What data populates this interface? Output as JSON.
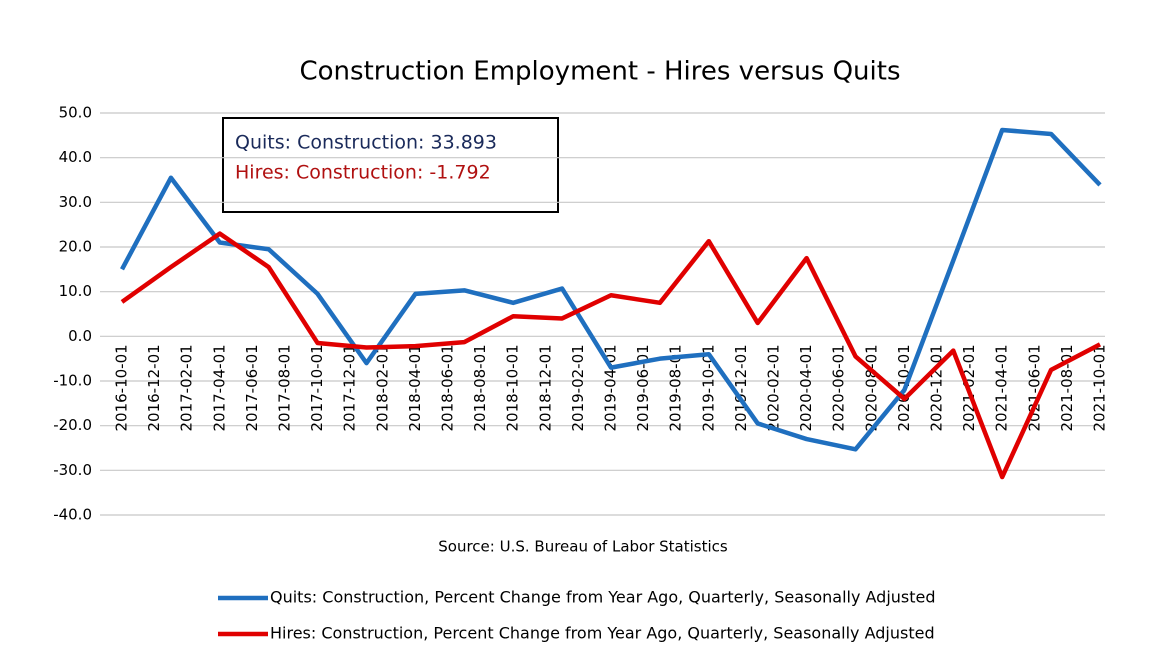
{
  "chart_data": {
    "type": "line",
    "title": "Construction Employment - Hires versus Quits",
    "source": "Source: U.S. Bureau of Labor Statistics",
    "annotations": [
      "Quits: Construction:  33.893",
      "Hires: Construction:  -1.792"
    ],
    "x": [
      "2016-10-01",
      "2017-01-01",
      "2017-04-01",
      "2017-07-01",
      "2017-10-01",
      "2018-01-01",
      "2018-04-01",
      "2018-07-01",
      "2018-10-01",
      "2019-01-01",
      "2019-04-01",
      "2019-07-01",
      "2019-10-01",
      "2020-01-01",
      "2020-04-01",
      "2020-07-01",
      "2020-10-01",
      "2021-01-01",
      "2021-04-01",
      "2021-07-01",
      "2021-10-01"
    ],
    "xticks": [
      "2016-10-01",
      "2016-12-01",
      "2017-02-01",
      "2017-04-01",
      "2017-06-01",
      "2017-08-01",
      "2017-10-01",
      "2017-12-01",
      "2018-02-01",
      "2018-04-01",
      "2018-06-01",
      "2018-08-01",
      "2018-10-01",
      "2018-12-01",
      "2019-02-01",
      "2019-04-01",
      "2019-06-01",
      "2019-08-01",
      "2019-10-01",
      "2019-12-01",
      "2020-02-01",
      "2020-04-01",
      "2020-06-01",
      "2020-08-01",
      "2020-10-01",
      "2020-12-01",
      "2021-02-01",
      "2021-04-01",
      "2021-06-01",
      "2021-08-01",
      "2021-10-01"
    ],
    "series": [
      {
        "name": "Quits: Construction, Percent Change from Year Ago, Quarterly, Seasonally Adjusted",
        "color": "#1f6fbf",
        "values": [
          15,
          35.5,
          21,
          19.5,
          9.5,
          -6,
          9.5,
          10.3,
          7.5,
          10.7,
          -7,
          -5,
          -4,
          -19.5,
          -23,
          -25.3,
          -12,
          17,
          46.2,
          45.3,
          33.893
        ]
      },
      {
        "name": "Hires: Construction, Percent Change from Year Ago, Quarterly, Seasonally Adjusted",
        "color": "#e00000",
        "values": [
          7.7,
          15.5,
          23,
          15.5,
          -1.5,
          -2.5,
          -2.2,
          -1.3,
          4.5,
          4,
          9.2,
          7.5,
          21.3,
          3,
          17.5,
          -4.5,
          -14,
          -3.2,
          -31.5,
          -7.5,
          -1.792
        ]
      }
    ],
    "ylim": [
      -40,
      50
    ],
    "yticks": [
      {
        "value": -40,
        "label": "-40.0"
      },
      {
        "value": -30,
        "label": "-30.0"
      },
      {
        "value": -20,
        "label": "-20.0"
      },
      {
        "value": -10,
        "label": "-10.0"
      },
      {
        "value": 0,
        "label": "0.0"
      },
      {
        "value": 10,
        "label": "10.0"
      },
      {
        "value": 20,
        "label": "20.0"
      },
      {
        "value": 30,
        "label": "30.0"
      },
      {
        "value": 40,
        "label": "40.0"
      },
      {
        "value": 50,
        "label": "50.0"
      }
    ],
    "grid": true
  }
}
